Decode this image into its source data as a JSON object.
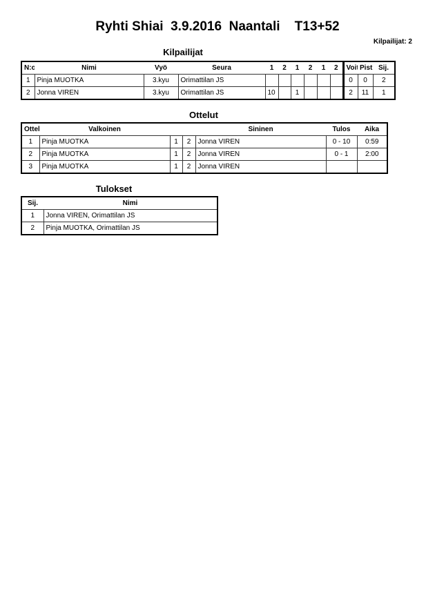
{
  "header": {
    "title": "Ryhti Shiai  3.9.2016  Naantali    T13+52",
    "count": "Kilpailijat: 2"
  },
  "competitors": {
    "title": "Kilpailijat",
    "columns": [
      "N:o",
      "Nimi",
      "Vyö",
      "Seura",
      "1",
      "2",
      "1",
      "2",
      "1",
      "2",
      "Voit.",
      "Pist.",
      "Sij."
    ],
    "rows": [
      [
        "1",
        "Pinja MUOTKA",
        "3.kyu",
        "Orimattilan JS",
        "",
        "",
        "",
        "",
        "",
        "",
        "0",
        "0",
        "2"
      ],
      [
        "2",
        "Jonna VIREN",
        "3.kyu",
        "Orimattilan JS",
        "10",
        "",
        "1",
        "",
        "",
        "",
        "2",
        "11",
        "1"
      ]
    ]
  },
  "matches": {
    "title": "Ottelut",
    "columns": [
      "Ottelu",
      "Valkoinen",
      "Sininen",
      "Tulos",
      "Aika"
    ],
    "rows": [
      [
        "1",
        "Pinja MUOTKA",
        "1",
        "2",
        "Jonna VIREN",
        "0 - 10",
        "0:59"
      ],
      [
        "2",
        "Pinja MUOTKA",
        "1",
        "2",
        "Jonna VIREN",
        "0 - 1",
        "2:00"
      ],
      [
        "3",
        "Pinja MUOTKA",
        "1",
        "2",
        "Jonna VIREN",
        "",
        ""
      ]
    ]
  },
  "results": {
    "title": "Tulokset",
    "columns": [
      "Sij.",
      "Nimi"
    ],
    "rows": [
      [
        "1",
        "Jonna VIREN, Orimattilan JS"
      ],
      [
        "2",
        "Pinja MUOTKA, Orimattilan JS"
      ]
    ]
  }
}
